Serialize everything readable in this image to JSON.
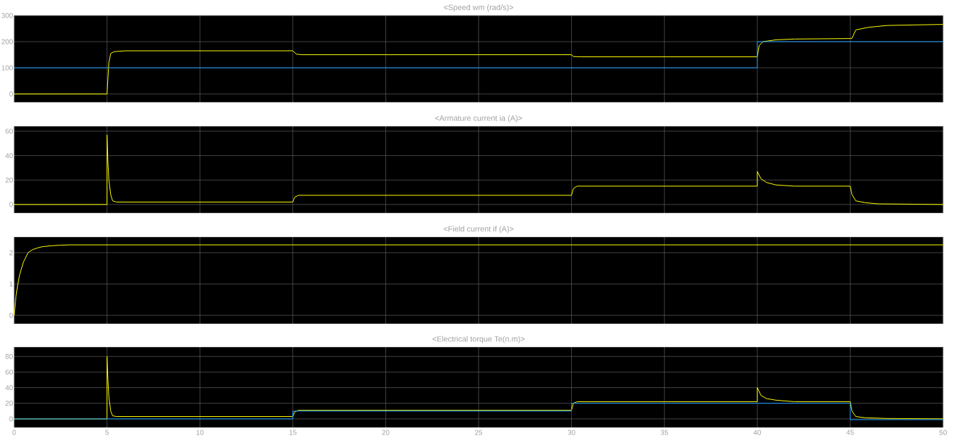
{
  "chart_data": [
    {
      "type": "line",
      "title": "<Speed wm (rad/s)>",
      "xlim": [
        0,
        50
      ],
      "ylim": [
        -32,
        300
      ],
      "xticks": [
        0,
        5,
        10,
        15,
        20,
        25,
        30,
        35,
        40,
        45,
        50
      ],
      "yticks": [
        0,
        100,
        200,
        300
      ],
      "grid": true,
      "tick_labels": "y",
      "series": [
        {
          "color": "#ffff00",
          "x": [
            0,
            5,
            5.05,
            5.1,
            5.2,
            5.4,
            6,
            15,
            15.2,
            15.5,
            30,
            30.1,
            30.5,
            40,
            40.1,
            40.3,
            41,
            42,
            45,
            45.1,
            45.3,
            46,
            47,
            50
          ],
          "values": [
            0,
            0,
            60,
            120,
            155,
            162,
            165,
            165,
            152,
            150,
            150,
            143,
            142,
            142,
            185,
            200,
            207,
            210,
            212,
            213,
            245,
            255,
            262,
            266
          ]
        },
        {
          "color": "#1a9bff",
          "x": [
            0,
            40,
            40,
            50
          ],
          "values": [
            100,
            100,
            200,
            200
          ]
        }
      ]
    },
    {
      "type": "line",
      "title": "<Armature current ia (A)>",
      "xlim": [
        0,
        50
      ],
      "ylim": [
        -7,
        64
      ],
      "xticks": [
        0,
        5,
        10,
        15,
        20,
        25,
        30,
        35,
        40,
        45,
        50
      ],
      "yticks": [
        0,
        20,
        40,
        60
      ],
      "grid": true,
      "tick_labels": "y",
      "series": [
        {
          "color": "#ffff00",
          "x": [
            0,
            5,
            5,
            5.05,
            5.1,
            5.2,
            5.3,
            5.5,
            15,
            15.1,
            15.3,
            30,
            30.1,
            30.3,
            40,
            40,
            40.2,
            40.5,
            41,
            42,
            45,
            45.1,
            45.3,
            45.8,
            46.5,
            50
          ],
          "values": [
            0,
            0,
            57,
            35,
            20,
            8,
            3,
            2,
            2,
            6,
            7.5,
            7.5,
            13,
            15,
            15,
            27,
            21,
            18,
            16,
            15,
            15,
            8,
            3,
            1.5,
            0.5,
            0
          ]
        }
      ]
    },
    {
      "type": "line",
      "title": "<Field current if (A)>",
      "xlim": [
        0,
        50
      ],
      "ylim": [
        -0.27,
        2.5
      ],
      "xticks": [
        0,
        5,
        10,
        15,
        20,
        25,
        30,
        35,
        40,
        45,
        50
      ],
      "yticks": [
        0,
        1,
        2
      ],
      "grid": true,
      "tick_labels": "y",
      "series": [
        {
          "color": "#ffff00",
          "x": [
            0,
            0.1,
            0.2,
            0.3,
            0.5,
            0.75,
            1,
            1.25,
            1.5,
            2,
            2.5,
            3,
            50
          ],
          "values": [
            0,
            0.6,
            1.0,
            1.3,
            1.7,
            2.0,
            2.1,
            2.15,
            2.19,
            2.22,
            2.24,
            2.25,
            2.25
          ]
        }
      ]
    },
    {
      "type": "line",
      "title": "<Electrical torque Te(n.m)>",
      "xlim": [
        0,
        50
      ],
      "ylim": [
        -11,
        92
      ],
      "xticks": [
        0,
        5,
        10,
        15,
        20,
        25,
        30,
        35,
        40,
        45,
        50
      ],
      "yticks": [
        0,
        20,
        40,
        60,
        80
      ],
      "grid": true,
      "series": [
        {
          "color": "#ffff00",
          "x": [
            0,
            5,
            5,
            5.05,
            5.1,
            5.2,
            5.3,
            5.5,
            15,
            15.1,
            15.3,
            30,
            30.1,
            30.3,
            40,
            40,
            40.2,
            40.5,
            41,
            42,
            45,
            45.1,
            45.3,
            45.8,
            47,
            50
          ],
          "values": [
            0,
            0,
            80,
            50,
            28,
            10,
            4,
            3,
            3,
            9,
            11,
            11,
            20,
            22,
            22,
            40,
            30,
            26,
            24,
            22,
            22,
            10,
            3,
            1.5,
            0.5,
            0
          ]
        },
        {
          "color": "#1a9bff",
          "x": [
            0,
            15,
            15,
            30,
            30,
            45,
            45,
            50
          ],
          "values": [
            0,
            0,
            10,
            10,
            20,
            20,
            -1,
            -1
          ]
        }
      ]
    }
  ]
}
